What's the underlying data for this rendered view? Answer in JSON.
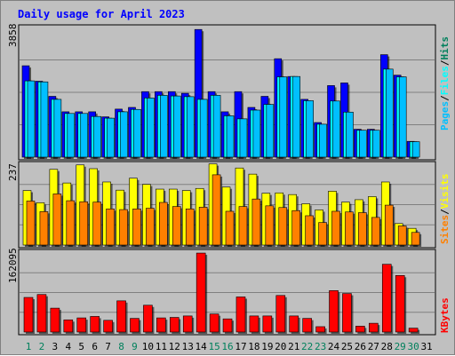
{
  "colors": {
    "hits": "#0000ff",
    "files": "#00ffff",
    "pages": "#00bfff",
    "visits": "#ffff00",
    "sites": "#ff8000",
    "kbytes": "#ff0000",
    "weekend_day": "#00805c",
    "title": "#0000ff"
  },
  "chart_data": [
    {
      "type": "bar",
      "title": "Daily usage for April 2023",
      "categories": [
        "1",
        "2",
        "3",
        "4",
        "5",
        "6",
        "7",
        "8",
        "9",
        "10",
        "11",
        "12",
        "13",
        "14",
        "15",
        "16",
        "17",
        "18",
        "19",
        "20",
        "21",
        "22",
        "23",
        "24",
        "25",
        "26",
        "27",
        "28",
        "29",
        "30",
        "31"
      ],
      "weekend_days": [
        "1",
        "2",
        "8",
        "9",
        "15",
        "16",
        "22",
        "23",
        "29",
        "30"
      ],
      "ylim": [
        0,
        3858
      ],
      "ymax_label": "3858",
      "legend": [
        "Pages",
        "/",
        "Files",
        "/",
        "Hits"
      ],
      "series": [
        {
          "name": "Hits",
          "values": [
            2720,
            2260,
            1810,
            1350,
            1350,
            1350,
            1200,
            1430,
            1480,
            1950,
            1950,
            1950,
            1900,
            3800,
            1950,
            1350,
            1950,
            1480,
            1810,
            2930,
            2400,
            1720,
            1030,
            2130,
            2210,
            830,
            830,
            3050,
            2440,
            470,
            0
          ]
        },
        {
          "name": "Files",
          "values": [
            2270,
            2240,
            1720,
            1300,
            1300,
            1210,
            1160,
            1350,
            1420,
            1760,
            1840,
            1820,
            1800,
            1720,
            1840,
            1230,
            1140,
            1400,
            1570,
            2390,
            2400,
            1680,
            980,
            1670,
            1340,
            800,
            800,
            2620,
            2390,
            460,
            0
          ]
        },
        {
          "name": "Pages",
          "values": [
            2270,
            2240,
            1720,
            1300,
            1300,
            1210,
            1160,
            1350,
            1420,
            1760,
            1840,
            1820,
            1800,
            1720,
            1840,
            1230,
            1140,
            1400,
            1570,
            2390,
            2400,
            1680,
            980,
            1670,
            1340,
            800,
            800,
            2620,
            2390,
            460,
            0
          ]
        }
      ]
    },
    {
      "type": "bar",
      "ylim": [
        0,
        237
      ],
      "ymax_label": "237",
      "legend": [
        "Sites",
        "/",
        "Visits"
      ],
      "series": [
        {
          "name": "Visits",
          "values": [
            160,
            124,
            222,
            182,
            235,
            224,
            185,
            161,
            196,
            178,
            164,
            164,
            160,
            166,
            238,
            170,
            226,
            208,
            152,
            153,
            148,
            121,
            103,
            158,
            126,
            133,
            142,
            185,
            63,
            49,
            0
          ]
        },
        {
          "name": "Sites",
          "values": [
            129,
            98,
            150,
            130,
            127,
            126,
            106,
            104,
            106,
            108,
            125,
            113,
            106,
            111,
            206,
            99,
            113,
            135,
            115,
            110,
            101,
            86,
            66,
            99,
            97,
            95,
            81,
            117,
            56,
            37,
            0
          ]
        }
      ]
    },
    {
      "type": "bar",
      "ylim": [
        0,
        162095
      ],
      "ymax_label": "162095",
      "legend": [
        "KBytes"
      ],
      "series": [
        {
          "name": "KBytes",
          "values": [
            71000,
            77000,
            49000,
            25000,
            29000,
            32000,
            24000,
            64000,
            28000,
            55000,
            29000,
            30000,
            33000,
            162000,
            37000,
            27000,
            72000,
            33000,
            33000,
            75000,
            33000,
            28000,
            11000,
            85000,
            79000,
            12000,
            18000,
            139000,
            116000,
            8000,
            0
          ]
        }
      ]
    }
  ]
}
